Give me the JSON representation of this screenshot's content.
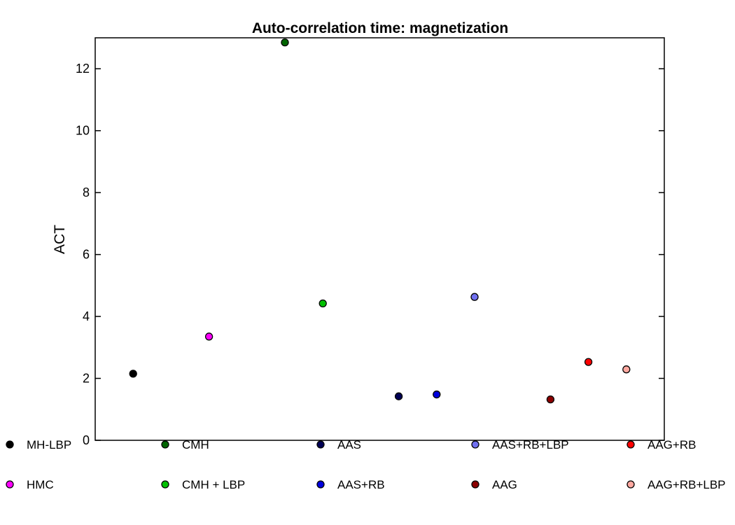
{
  "chart_data": {
    "type": "scatter",
    "title": "Auto-correlation time: magnetization",
    "xlabel": "",
    "ylabel": "ACT",
    "ylim": [
      0,
      13
    ],
    "xlim": [
      -1,
      14
    ],
    "yticks": [
      0,
      2,
      4,
      6,
      8,
      10,
      12
    ],
    "grid": false,
    "legend_position": "bottom",
    "series": [
      {
        "name": "MH-LBP",
        "x": [
          0
        ],
        "values": [
          2.15
        ],
        "color": "#000000"
      },
      {
        "name": "HMC",
        "x": [
          2
        ],
        "values": [
          3.35
        ],
        "color": "#ff00ff"
      },
      {
        "name": "CMH",
        "x": [
          4
        ],
        "values": [
          12.85
        ],
        "color": "#006400"
      },
      {
        "name": "CMH + LBP",
        "x": [
          5
        ],
        "values": [
          4.42
        ],
        "color": "#00c000"
      },
      {
        "name": "AAS",
        "x": [
          7
        ],
        "values": [
          1.42
        ],
        "color": "#000055"
      },
      {
        "name": "AAS+RB",
        "x": [
          8
        ],
        "values": [
          1.48
        ],
        "color": "#0000dd"
      },
      {
        "name": "AAS+RB+LBP",
        "x": [
          9
        ],
        "values": [
          4.63
        ],
        "color": "#7070f0"
      },
      {
        "name": "AAG",
        "x": [
          11
        ],
        "values": [
          1.32
        ],
        "color": "#8b0000"
      },
      {
        "name": "AAG+RB",
        "x": [
          12
        ],
        "values": [
          2.53
        ],
        "color": "#ff0000"
      },
      {
        "name": "AAG+RB+LBP",
        "x": [
          13
        ],
        "values": [
          2.29
        ],
        "color": "#ffa8a0"
      }
    ]
  }
}
